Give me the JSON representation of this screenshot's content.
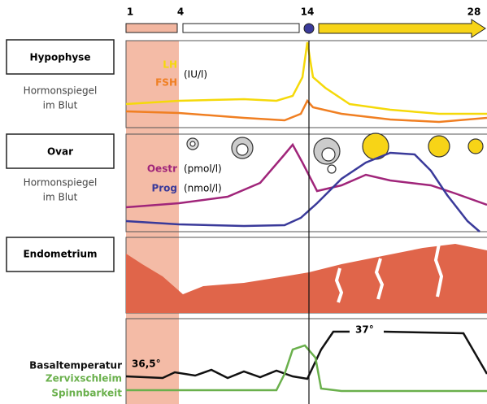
{
  "timeline": {
    "days": [
      1,
      4,
      14,
      28
    ]
  },
  "hypophyse": {
    "label": "Hypophyse",
    "subtitle": [
      "Hormonspiegel",
      "im Blut"
    ],
    "lh": "LH",
    "fsh": "FSH",
    "unit": "(IU/l)"
  },
  "ovar": {
    "label": "Ovar",
    "subtitle": [
      "Hormonspiegel",
      "im Blut"
    ],
    "oestr": "Oestr",
    "oestr_unit": "(pmol/l)",
    "prog": "Prog",
    "prog_unit": "(nmol/l)"
  },
  "endometrium": {
    "label": "Endometrium"
  },
  "bottom": {
    "labels": [
      "Basaltemperatur",
      "Zervixschleim",
      "Spinnbarkeit"
    ],
    "temp_low": "36,5°",
    "temp_high": "37°"
  }
}
